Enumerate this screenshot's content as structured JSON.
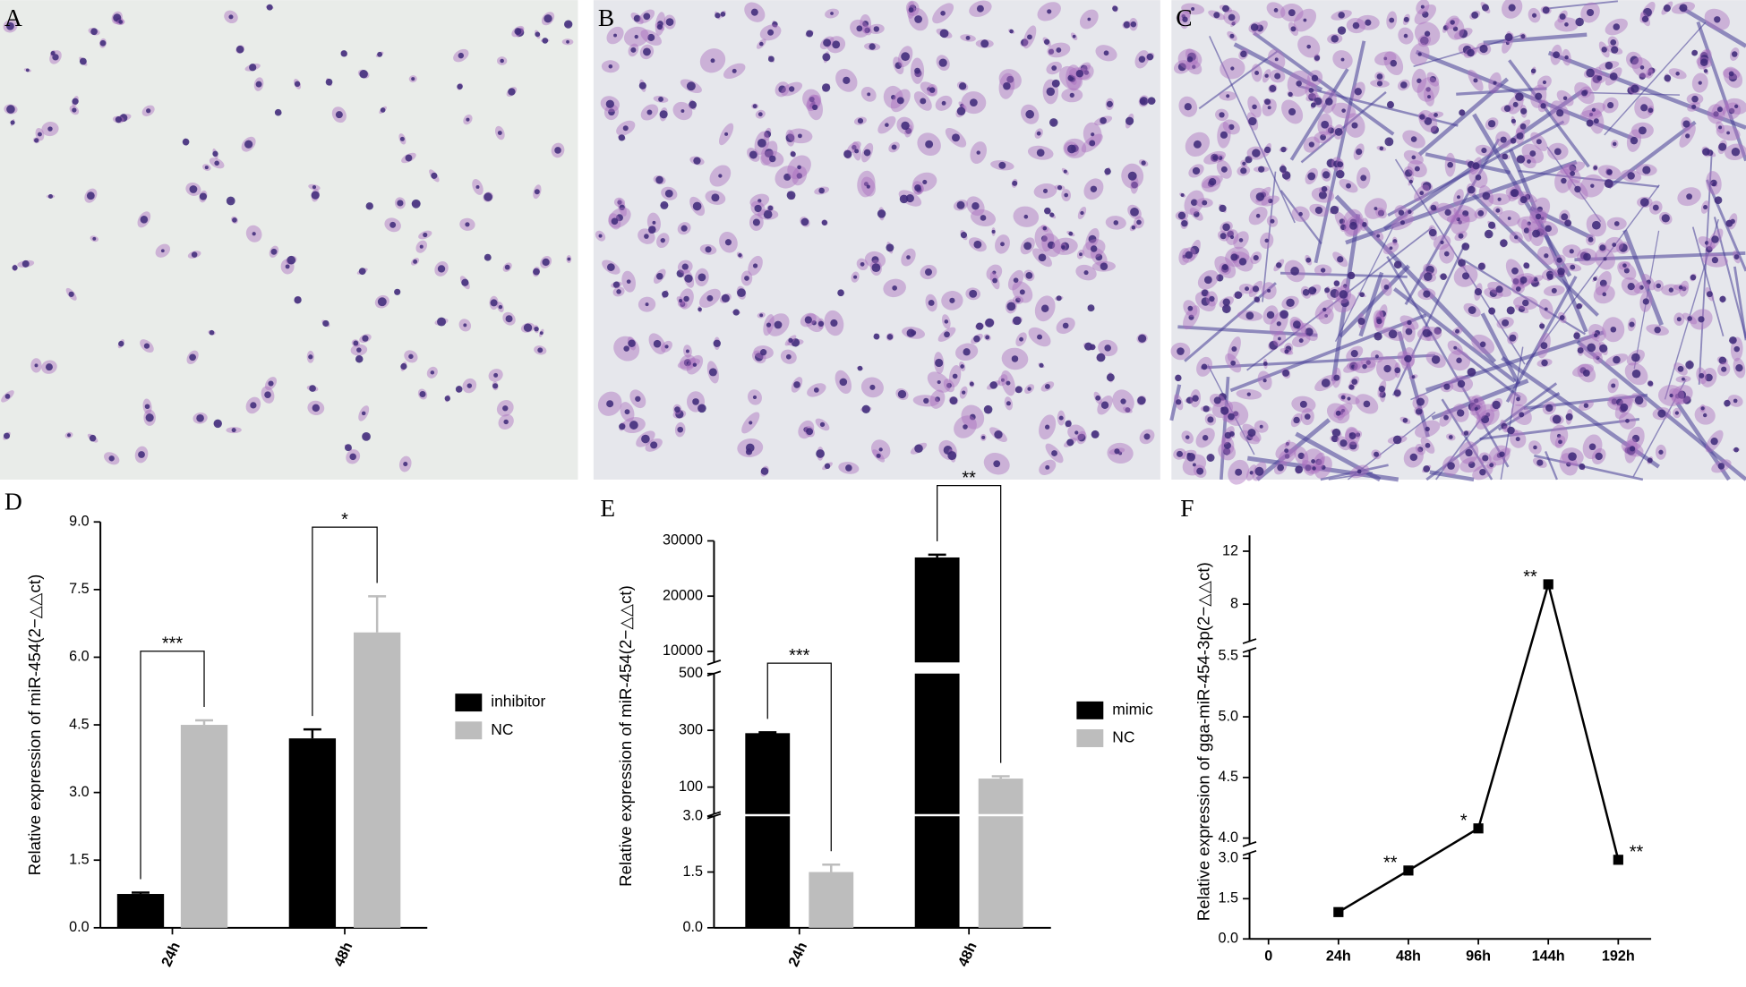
{
  "panels": [
    {
      "label": "A"
    },
    {
      "label": "B"
    },
    {
      "label": "C"
    }
  ],
  "chart_data": [
    {
      "type": "bar",
      "panel_label": "D",
      "y_label": "Relative expression of  miR-454(2−△△ct)",
      "categories": [
        "24h",
        "48h"
      ],
      "series": [
        {
          "name": "inhibitor",
          "color": "#000000",
          "values": [
            0.75,
            4.2
          ],
          "errors": [
            0.03,
            0.2
          ]
        },
        {
          "name": "NC",
          "color": "#bdbdbd",
          "values": [
            4.5,
            6.55
          ],
          "errors": [
            0.1,
            0.8
          ]
        }
      ],
      "annotations": [
        "***",
        "*"
      ],
      "ylim": [
        0,
        9
      ],
      "yticks": [
        {
          "value": 0,
          "label": "0.0"
        },
        1.5,
        {
          "value": 3,
          "label": "3.0"
        },
        4.5,
        {
          "value": 6,
          "label": "6.0"
        },
        7.5,
        {
          "value": 9,
          "label": "9.0"
        }
      ],
      "legend": "right"
    },
    {
      "type": "bar",
      "panel_label": "E",
      "y_label": "Relative expression of  miR-454(2−△△ct)",
      "categories": [
        "24h",
        "48h"
      ],
      "series": [
        {
          "name": "mimic",
          "color": "#000000",
          "values": [
            290,
            27000
          ],
          "errors": [
            3,
            500
          ]
        },
        {
          "name": "NC",
          "color": "#bdbdbd",
          "values": [
            1.5,
            130
          ],
          "errors": [
            0.2,
            8
          ]
        }
      ],
      "annotations": [
        "***",
        "**"
      ],
      "y_segments": [
        {
          "ylim": [
            0,
            3
          ],
          "yticks": [
            {
              "value": 0,
              "label": "0.0"
            },
            1.5,
            {
              "value": 3,
              "label": "3.0"
            }
          ]
        },
        {
          "ylim": [
            5,
            500
          ],
          "yticks": [
            100,
            300,
            500
          ]
        },
        {
          "ylim": [
            8000,
            30000
          ],
          "yticks": [
            10000,
            20000,
            30000
          ]
        }
      ],
      "legend": "right"
    },
    {
      "type": "line",
      "panel_label": "F",
      "y_label": "Relative expression of  gga-miR-454-3p(2−△△ct)",
      "categories": [
        "0",
        "24h",
        "48h",
        "96h",
        "144h",
        "192h"
      ],
      "series": [
        {
          "color": "#000000",
          "values": [
            null,
            1.0,
            2.55,
            4.08,
            9.5,
            2.95
          ]
        }
      ],
      "annotations": [
        null,
        null,
        "**",
        "*",
        "**",
        "**"
      ],
      "y_segments": [
        {
          "ylim": [
            0,
            3.2
          ],
          "yticks": [
            {
              "value": 0,
              "label": "0.0"
            },
            1.5,
            {
              "value": 3,
              "label": "3.0"
            }
          ]
        },
        {
          "ylim": [
            3.95,
            5.55
          ],
          "yticks": [
            {
              "value": 4,
              "label": "4.0"
            },
            4.5,
            {
              "value": 5,
              "label": "5.0"
            },
            5.5
          ]
        },
        {
          "ylim": [
            5.2,
            13.2
          ],
          "yticks": [
            8,
            12
          ]
        }
      ]
    }
  ]
}
